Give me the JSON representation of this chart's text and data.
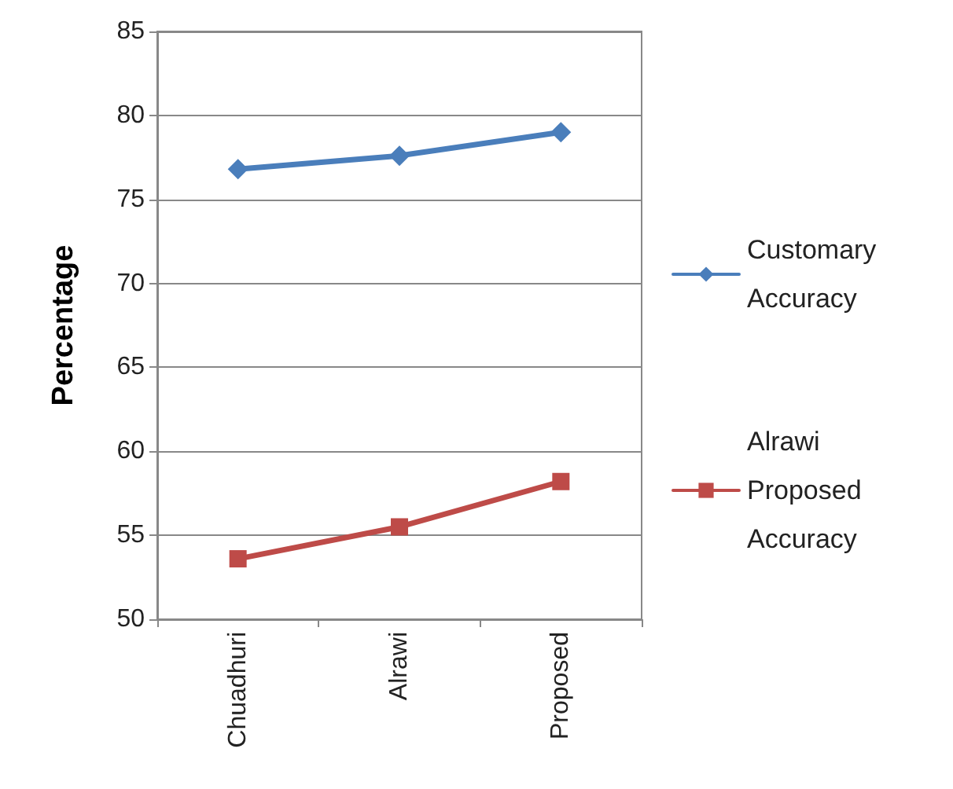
{
  "chart_data": {
    "type": "line",
    "ylabel": "Percentage",
    "categories": [
      "Chuadhuri",
      "Alrawi",
      "Proposed"
    ],
    "series": [
      {
        "name": "Customary Accuracy",
        "color": "#4a7ebb",
        "marker": "diamond",
        "values": [
          76.8,
          77.6,
          79.0
        ]
      },
      {
        "name": "Alrawi Proposed Accuracy",
        "color": "#be4b48",
        "marker": "square",
        "values": [
          53.6,
          55.5,
          58.2
        ]
      }
    ],
    "ylim": [
      50,
      85
    ],
    "yticks": [
      50,
      55,
      60,
      65,
      70,
      75,
      80,
      85
    ],
    "grid": "y",
    "legend": "right",
    "line_style": "solid"
  }
}
